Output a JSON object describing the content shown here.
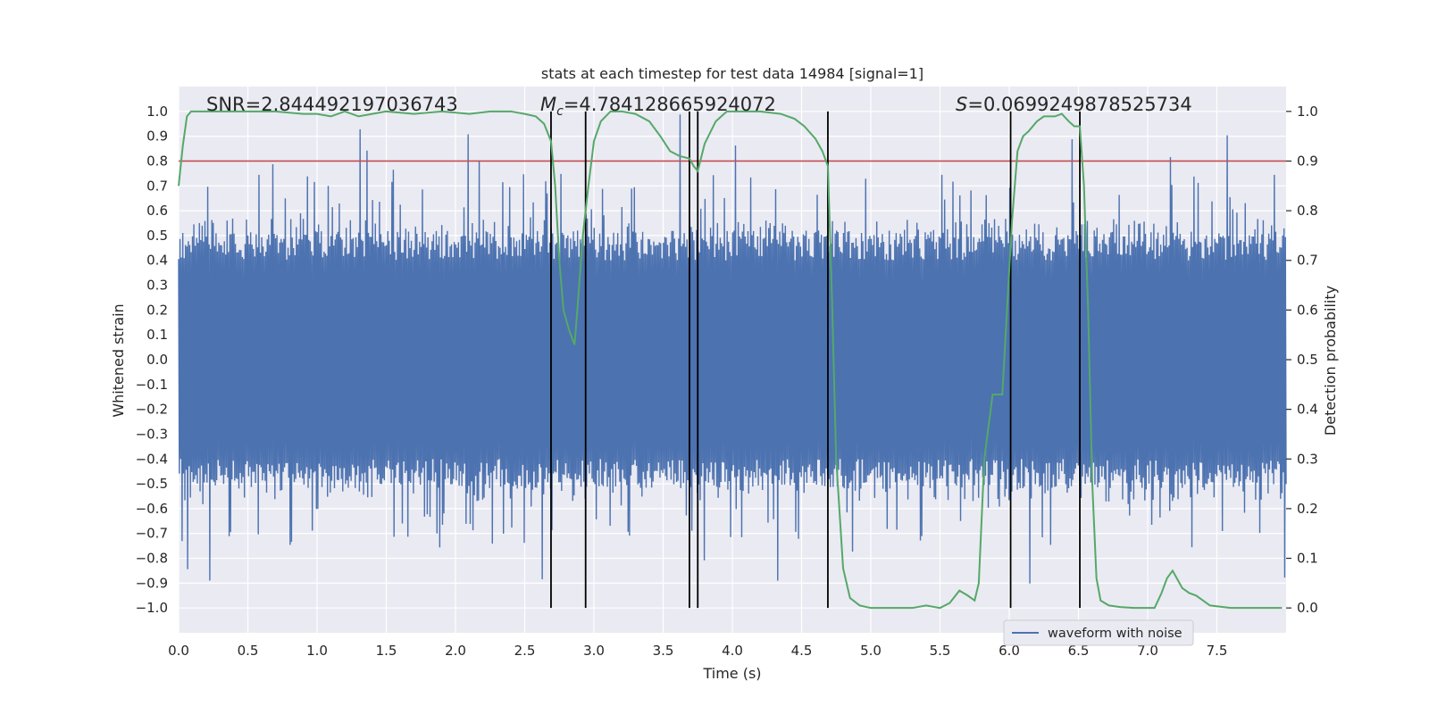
{
  "chart_data": {
    "type": "line",
    "title": "stats at each timestep for test data 14984 [signal=1]",
    "xlabel": "Time (s)",
    "ylabel_left": "Whitened strain",
    "ylabel_right": "Detection probability",
    "xlim": [
      0.0,
      8.0
    ],
    "ylim_left": [
      -1.1,
      1.1
    ],
    "ylim_right": [
      -0.05,
      1.05
    ],
    "grid": true,
    "xticks": [
      "0.0",
      "0.5",
      "1.0",
      "1.5",
      "2.0",
      "2.5",
      "3.0",
      "3.5",
      "4.0",
      "4.5",
      "5.0",
      "5.5",
      "6.0",
      "6.5",
      "7.0",
      "7.5"
    ],
    "xtick_values": [
      0,
      0.5,
      1,
      1.5,
      2,
      2.5,
      3,
      3.5,
      4,
      4.5,
      5,
      5.5,
      6,
      6.5,
      7,
      7.5
    ],
    "yticks_left": [
      "1.0",
      "0.9",
      "0.8",
      "0.7",
      "0.6",
      "0.5",
      "0.4",
      "0.3",
      "0.2",
      "0.1",
      "0.0",
      "−0.1",
      "−0.2",
      "−0.3",
      "−0.4",
      "−0.5",
      "−0.6",
      "−0.7",
      "−0.8",
      "−0.9",
      "−1.0"
    ],
    "ytick_values_left": [
      1.0,
      0.9,
      0.8,
      0.7,
      0.6,
      0.5,
      0.4,
      0.3,
      0.2,
      0.1,
      0.0,
      -0.1,
      -0.2,
      -0.3,
      -0.4,
      -0.5,
      -0.6,
      -0.7,
      -0.8,
      -0.9,
      -1.0
    ],
    "yticks_right": [
      "1.0",
      "0.9",
      "0.8",
      "0.7",
      "0.6",
      "0.5",
      "0.4",
      "0.3",
      "0.2",
      "0.1",
      "0.0"
    ],
    "ytick_values_right": [
      1.0,
      0.9,
      0.8,
      0.7,
      0.6,
      0.5,
      0.4,
      0.3,
      0.2,
      0.1,
      0.0
    ],
    "annotations": {
      "snr": "SNR=2.844492197036743",
      "mc": "=4.784128665924072",
      "mc_symbol": "M",
      "mc_sub": "c",
      "s": "=0.0699249878525734",
      "s_symbol": "S"
    },
    "threshold": {
      "value": 0.9,
      "axis": "right",
      "color": "#c44e52"
    },
    "vlines": [
      2.69,
      2.94,
      3.69,
      3.75,
      4.69,
      6.01,
      6.51
    ],
    "waveform": {
      "name": "waveform with noise",
      "color": "#4c72b0",
      "samples": 1600,
      "amplitude_core": 0.4,
      "amplitude_peak": 1.0,
      "seed": 14984
    },
    "probability": {
      "color": "#55a868",
      "t": [
        0.0,
        0.03,
        0.06,
        0.09,
        0.12,
        0.2,
        0.3,
        0.5,
        0.7,
        0.9,
        1.0,
        1.1,
        1.2,
        1.3,
        1.5,
        1.7,
        1.9,
        2.1,
        2.25,
        2.4,
        2.5,
        2.58,
        2.64,
        2.69,
        2.72,
        2.75,
        2.78,
        2.82,
        2.86,
        2.88,
        2.92,
        2.96,
        3.0,
        3.05,
        3.12,
        3.2,
        3.3,
        3.4,
        3.48,
        3.55,
        3.62,
        3.69,
        3.72,
        3.75,
        3.8,
        3.88,
        3.96,
        4.05,
        4.2,
        4.35,
        4.45,
        4.52,
        4.6,
        4.65,
        4.69,
        4.72,
        4.75,
        4.8,
        4.85,
        4.92,
        5.0,
        5.1,
        5.2,
        5.3,
        5.4,
        5.5,
        5.57,
        5.64,
        5.7,
        5.75,
        5.78,
        5.82,
        5.88,
        5.95,
        6.02,
        6.06,
        6.1,
        6.14,
        6.2,
        6.25,
        6.33,
        6.38,
        6.43,
        6.47,
        6.51,
        6.54,
        6.57,
        6.6,
        6.63,
        6.66,
        6.72,
        6.8,
        6.9,
        7.0,
        7.05,
        7.1,
        7.14,
        7.18,
        7.25,
        7.3,
        7.35,
        7.45,
        7.6,
        7.8,
        7.97
      ],
      "p": [
        0.85,
        0.93,
        0.99,
        1.0,
        1.0,
        1.0,
        1.0,
        1.0,
        1.0,
        0.995,
        0.995,
        0.99,
        1.0,
        0.99,
        1.0,
        0.995,
        1.0,
        0.995,
        1.0,
        1.0,
        0.995,
        0.99,
        0.975,
        0.94,
        0.85,
        0.7,
        0.6,
        0.56,
        0.53,
        0.6,
        0.75,
        0.85,
        0.94,
        0.98,
        1.0,
        1.0,
        0.995,
        0.98,
        0.95,
        0.92,
        0.91,
        0.905,
        0.89,
        0.88,
        0.935,
        0.98,
        1.0,
        1.0,
        1.0,
        0.995,
        0.985,
        0.97,
        0.945,
        0.92,
        0.89,
        0.62,
        0.3,
        0.08,
        0.02,
        0.005,
        0.0,
        0.0,
        0.0,
        0.0,
        0.005,
        0.0,
        0.01,
        0.035,
        0.025,
        0.015,
        0.05,
        0.3,
        0.43,
        0.43,
        0.78,
        0.92,
        0.95,
        0.96,
        0.98,
        0.99,
        0.99,
        0.995,
        0.98,
        0.97,
        0.97,
        0.85,
        0.6,
        0.25,
        0.06,
        0.015,
        0.005,
        0.002,
        0.0,
        0.0,
        0.0,
        0.03,
        0.06,
        0.075,
        0.04,
        0.03,
        0.025,
        0.005,
        0.0,
        0.0,
        0.0
      ]
    },
    "legend": {
      "label": "waveform with noise",
      "placement": "bottom-right"
    }
  }
}
